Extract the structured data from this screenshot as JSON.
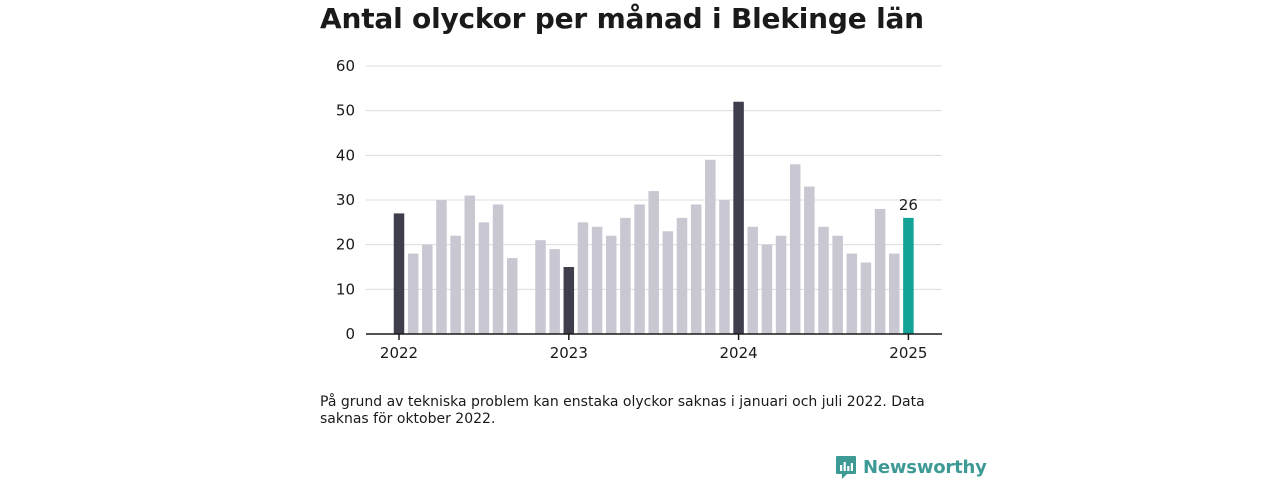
{
  "title": "Antal olyckor per månad i Blekinge län",
  "note": "På grund av tekniska problem kan enstaka olyckor saknas i januari och juli 2022. Data saknas för oktober 2022.",
  "brand": {
    "name": "Newsworthy",
    "icon": "bar-chart-logo-icon",
    "color": "#3d9a94"
  },
  "chart_data": {
    "type": "bar",
    "title": "Antal olyckor per månad i Blekinge län",
    "xlabel": "",
    "ylabel": "",
    "ylim": [
      0,
      60
    ],
    "yticks": [
      0,
      10,
      20,
      30,
      40,
      50,
      60
    ],
    "grid": true,
    "legend": "none",
    "xtick_labels": [
      "2022",
      "2023",
      "2024",
      "2025"
    ],
    "colors": {
      "default": "#c8c7d2",
      "january": "#3f3e4c",
      "latest": "#12a396"
    },
    "points": [
      {
        "date": "2022-01",
        "value": 27,
        "highlight": "january"
      },
      {
        "date": "2022-02",
        "value": 18
      },
      {
        "date": "2022-03",
        "value": 20
      },
      {
        "date": "2022-04",
        "value": 30
      },
      {
        "date": "2022-05",
        "value": 22
      },
      {
        "date": "2022-06",
        "value": 31
      },
      {
        "date": "2022-07",
        "value": 25
      },
      {
        "date": "2022-08",
        "value": 29
      },
      {
        "date": "2022-09",
        "value": 17
      },
      {
        "date": "2022-10",
        "value": null
      },
      {
        "date": "2022-11",
        "value": 21
      },
      {
        "date": "2022-12",
        "value": 19
      },
      {
        "date": "2023-01",
        "value": 15,
        "highlight": "january"
      },
      {
        "date": "2023-02",
        "value": 25
      },
      {
        "date": "2023-03",
        "value": 24
      },
      {
        "date": "2023-04",
        "value": 22
      },
      {
        "date": "2023-05",
        "value": 26
      },
      {
        "date": "2023-06",
        "value": 29
      },
      {
        "date": "2023-07",
        "value": 32
      },
      {
        "date": "2023-08",
        "value": 23
      },
      {
        "date": "2023-09",
        "value": 26
      },
      {
        "date": "2023-10",
        "value": 29
      },
      {
        "date": "2023-11",
        "value": 39
      },
      {
        "date": "2023-12",
        "value": 30
      },
      {
        "date": "2024-01",
        "value": 52,
        "highlight": "january"
      },
      {
        "date": "2024-02",
        "value": 24
      },
      {
        "date": "2024-03",
        "value": 20
      },
      {
        "date": "2024-04",
        "value": 22
      },
      {
        "date": "2024-05",
        "value": 38
      },
      {
        "date": "2024-06",
        "value": 33
      },
      {
        "date": "2024-07",
        "value": 24
      },
      {
        "date": "2024-08",
        "value": 22
      },
      {
        "date": "2024-09",
        "value": 18
      },
      {
        "date": "2024-10",
        "value": 16
      },
      {
        "date": "2024-11",
        "value": 28
      },
      {
        "date": "2024-12",
        "value": 18
      },
      {
        "date": "2025-01",
        "value": 26,
        "highlight": "latest",
        "label": "26"
      }
    ]
  }
}
